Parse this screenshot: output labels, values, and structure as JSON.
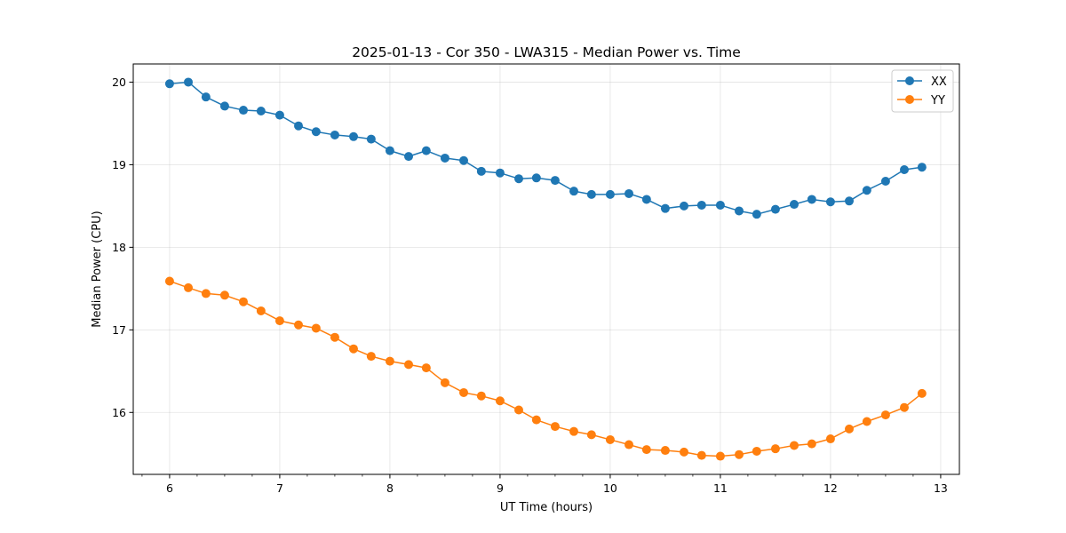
{
  "chart_data": {
    "type": "line",
    "title": "2025-01-13 - Cor 350 - LWA315 - Median Power vs. Time",
    "xlabel": "UT Time (hours)",
    "ylabel": "Median Power (CPU)",
    "xlim": [
      5.67,
      13.17
    ],
    "ylim": [
      15.25,
      20.22
    ],
    "xticks": [
      6,
      7,
      8,
      9,
      10,
      11,
      12,
      13
    ],
    "xtick_labels": [
      "6",
      "7",
      "8",
      "9",
      "10",
      "11",
      "12",
      "13"
    ],
    "xminor_step": 0.25,
    "yticks": [
      16,
      17,
      18,
      19,
      20
    ],
    "ytick_labels": [
      "16",
      "17",
      "18",
      "19",
      "20"
    ],
    "grid": true,
    "legend_position": "top-right",
    "x": [
      6.0,
      6.17,
      6.33,
      6.5,
      6.67,
      6.83,
      7.0,
      7.17,
      7.33,
      7.5,
      7.67,
      7.83,
      8.0,
      8.17,
      8.33,
      8.5,
      8.67,
      8.83,
      9.0,
      9.17,
      9.33,
      9.5,
      9.67,
      9.83,
      10.0,
      10.17,
      10.33,
      10.5,
      10.67,
      10.83,
      11.0,
      11.17,
      11.33,
      11.5,
      11.67,
      11.83,
      12.0,
      12.17,
      12.33,
      12.5,
      12.67,
      12.83
    ],
    "series": [
      {
        "name": "XX",
        "color": "#1f77b4",
        "values": [
          19.98,
          20.0,
          19.82,
          19.71,
          19.66,
          19.65,
          19.6,
          19.47,
          19.4,
          19.36,
          19.34,
          19.31,
          19.17,
          19.1,
          19.17,
          19.08,
          19.05,
          18.92,
          18.9,
          18.83,
          18.84,
          18.81,
          18.68,
          18.64,
          18.64,
          18.65,
          18.58,
          18.47,
          18.5,
          18.51,
          18.51,
          18.44,
          18.4,
          18.46,
          18.52,
          18.58,
          18.55,
          18.56,
          18.69,
          18.8,
          18.94,
          18.97
        ]
      },
      {
        "name": "YY",
        "color": "#ff7f0e",
        "values": [
          17.59,
          17.51,
          17.44,
          17.42,
          17.34,
          17.23,
          17.11,
          17.06,
          17.02,
          16.91,
          16.77,
          16.68,
          16.62,
          16.58,
          16.54,
          16.36,
          16.24,
          16.2,
          16.14,
          16.03,
          15.91,
          15.83,
          15.77,
          15.73,
          15.67,
          15.61,
          15.55,
          15.54,
          15.52,
          15.48,
          15.47,
          15.49,
          15.53,
          15.56,
          15.6,
          15.62,
          15.68,
          15.8,
          15.89,
          15.97,
          16.06,
          16.23
        ]
      }
    ]
  }
}
